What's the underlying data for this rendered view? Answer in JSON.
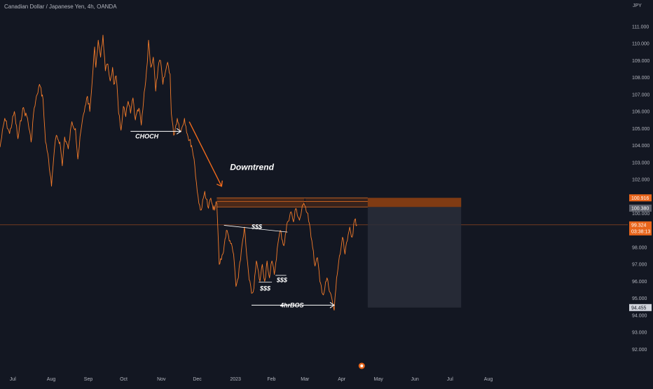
{
  "header": {
    "title": "Canadian Dollar / Japanese Yen, 4h, OANDA",
    "unit": "JPY"
  },
  "colors": {
    "background": "#131722",
    "price_line": "#f57c2a",
    "downtrend_arrow": "#f06a1c",
    "supply_zone": "#8b3d10",
    "target_box": "#2a2e39",
    "current_price_badge": "#e8651b",
    "zone_badge": "#e8651b",
    "gray_badge": "#5d606b",
    "text": "#b2b5be",
    "annotation": "#ffffff"
  },
  "chart_data": {
    "type": "line",
    "title": "Canadian Dollar / Japanese Yen, 4h, OANDA",
    "xlabel": "",
    "ylabel": "JPY",
    "ylim": [
      91.6,
      111.7
    ],
    "y_ticks": [
      "92.000",
      "93.000",
      "94.000",
      "95.000",
      "96.000",
      "97.000",
      "98.000",
      "99.000",
      "100.000",
      "101.000",
      "102.000",
      "103.000",
      "104.000",
      "105.000",
      "106.000",
      "107.000",
      "108.000",
      "109.000",
      "110.000",
      "111.000"
    ],
    "y_tick_values": [
      92,
      93,
      94,
      95,
      96,
      97,
      98,
      99,
      100,
      101,
      102,
      103,
      104,
      105,
      106,
      107,
      108,
      109,
      110,
      111
    ],
    "x_ticks": [
      "Jul",
      "Aug",
      "Sep",
      "Oct",
      "Nov",
      "Dec",
      "2023",
      "Feb",
      "Mar",
      "Apr",
      "May",
      "Jun",
      "Jul",
      "Aug"
    ],
    "x_tick_dates": [
      "2022-07-01",
      "2022-08-01",
      "2022-09-01",
      "2022-10-01",
      "2022-11-01",
      "2022-12-01",
      "2023-01-01",
      "2023-02-01",
      "2023-03-01",
      "2023-04-01",
      "2023-05-01",
      "2023-06-01",
      "2023-07-01",
      "2023-08-01"
    ],
    "series": [
      {
        "color": "#f57c2a",
        "points": [
          [
            "2022-06-20",
            103.9
          ],
          [
            "2022-06-24",
            105.6
          ],
          [
            "2022-06-28",
            104.7
          ],
          [
            "2022-07-02",
            106.0
          ],
          [
            "2022-07-05",
            104.4
          ],
          [
            "2022-07-09",
            106.2
          ],
          [
            "2022-07-13",
            105.6
          ],
          [
            "2022-07-16",
            104.2
          ],
          [
            "2022-07-18",
            105.9
          ],
          [
            "2022-07-21",
            107.0
          ],
          [
            "2022-07-23",
            107.6
          ],
          [
            "2022-07-26",
            106.7
          ],
          [
            "2022-07-28",
            104.2
          ],
          [
            "2022-07-30",
            103.5
          ],
          [
            "2022-08-02",
            101.6
          ],
          [
            "2022-08-04",
            103.4
          ],
          [
            "2022-08-06",
            104.6
          ],
          [
            "2022-08-09",
            104.2
          ],
          [
            "2022-08-11",
            102.8
          ],
          [
            "2022-08-13",
            104.5
          ],
          [
            "2022-08-16",
            103.8
          ],
          [
            "2022-08-19",
            105.4
          ],
          [
            "2022-08-22",
            105.0
          ],
          [
            "2022-08-24",
            103.2
          ],
          [
            "2022-08-27",
            105.1
          ],
          [
            "2022-08-30",
            106.3
          ],
          [
            "2022-09-01",
            106.9
          ],
          [
            "2022-09-03",
            106.0
          ],
          [
            "2022-09-05",
            107.8
          ],
          [
            "2022-09-07",
            109.8
          ],
          [
            "2022-09-08",
            108.6
          ],
          [
            "2022-09-10",
            110.2
          ],
          [
            "2022-09-12",
            109.2
          ],
          [
            "2022-09-14",
            110.5
          ],
          [
            "2022-09-16",
            108.4
          ],
          [
            "2022-09-18",
            108.8
          ],
          [
            "2022-09-20",
            107.8
          ],
          [
            "2022-09-22",
            108.6
          ],
          [
            "2022-09-23",
            107.6
          ],
          [
            "2022-09-25",
            108.1
          ],
          [
            "2022-09-27",
            105.9
          ],
          [
            "2022-09-29",
            104.9
          ],
          [
            "2022-10-01",
            106.3
          ],
          [
            "2022-10-03",
            105.7
          ],
          [
            "2022-10-05",
            106.6
          ],
          [
            "2022-10-07",
            105.9
          ],
          [
            "2022-10-09",
            106.8
          ],
          [
            "2022-10-11",
            105.5
          ],
          [
            "2022-10-14",
            106.2
          ],
          [
            "2022-10-16",
            105.2
          ],
          [
            "2022-10-19",
            107.4
          ],
          [
            "2022-10-21",
            108.9
          ],
          [
            "2022-10-22",
            110.2
          ],
          [
            "2022-10-24",
            108.6
          ],
          [
            "2022-10-26",
            109.2
          ],
          [
            "2022-10-28",
            107.2
          ],
          [
            "2022-10-30",
            108.6
          ],
          [
            "2022-11-01",
            109.0
          ],
          [
            "2022-11-03",
            107.6
          ],
          [
            "2022-11-05",
            108.3
          ],
          [
            "2022-11-07",
            108.9
          ],
          [
            "2022-11-09",
            108.2
          ],
          [
            "2022-11-10",
            105.9
          ],
          [
            "2022-11-12",
            104.6
          ],
          [
            "2022-11-15",
            105.6
          ],
          [
            "2022-11-18",
            104.8
          ],
          [
            "2022-11-21",
            105.6
          ],
          [
            "2022-11-24",
            104.5
          ],
          [
            "2022-11-27",
            104.0
          ],
          [
            "2022-11-29",
            103.2
          ],
          [
            "2022-12-01",
            101.8
          ],
          [
            "2022-12-03",
            100.6
          ],
          [
            "2022-12-05",
            100.2
          ],
          [
            "2022-12-08",
            101.3
          ],
          [
            "2022-12-11",
            100.3
          ],
          [
            "2022-12-13",
            100.9
          ],
          [
            "2022-12-15",
            100.2
          ],
          [
            "2022-12-18",
            100.6
          ],
          [
            "2022-12-20",
            97.0
          ],
          [
            "2022-12-23",
            97.6
          ],
          [
            "2022-12-26",
            99.0
          ],
          [
            "2022-12-29",
            98.4
          ],
          [
            "2023-01-01",
            97.6
          ],
          [
            "2023-01-03",
            95.7
          ],
          [
            "2023-01-05",
            96.2
          ],
          [
            "2023-01-08",
            98.1
          ],
          [
            "2023-01-10",
            99.2
          ],
          [
            "2023-01-12",
            97.5
          ],
          [
            "2023-01-14",
            96.1
          ],
          [
            "2023-01-16",
            95.3
          ],
          [
            "2023-01-18",
            95.6
          ],
          [
            "2023-01-20",
            97.2
          ],
          [
            "2023-01-23",
            96.0
          ],
          [
            "2023-01-25",
            97.0
          ],
          [
            "2023-01-27",
            96.0
          ],
          [
            "2023-01-29",
            97.2
          ],
          [
            "2023-01-31",
            96.2
          ],
          [
            "2023-02-02",
            97.2
          ],
          [
            "2023-02-04",
            96.4
          ],
          [
            "2023-02-07",
            98.2
          ],
          [
            "2023-02-09",
            99.0
          ],
          [
            "2023-02-12",
            98.1
          ],
          [
            "2023-02-15",
            99.5
          ],
          [
            "2023-02-18",
            100.1
          ],
          [
            "2023-02-20",
            99.5
          ],
          [
            "2023-02-22",
            100.3
          ],
          [
            "2023-02-25",
            99.6
          ],
          [
            "2023-02-28",
            100.5
          ],
          [
            "2023-03-02",
            100.4
          ],
          [
            "2023-03-04",
            100.0
          ],
          [
            "2023-03-06",
            99.1
          ],
          [
            "2023-03-08",
            98.0
          ],
          [
            "2023-03-10",
            96.9
          ],
          [
            "2023-03-12",
            97.4
          ],
          [
            "2023-03-14",
            96.0
          ],
          [
            "2023-03-17",
            95.2
          ],
          [
            "2023-03-20",
            96.2
          ],
          [
            "2023-03-22",
            95.4
          ],
          [
            "2023-03-24",
            95.0
          ],
          [
            "2023-03-26",
            94.3
          ],
          [
            "2023-03-28",
            96.2
          ],
          [
            "2023-03-31",
            97.6
          ],
          [
            "2023-04-02",
            98.6
          ],
          [
            "2023-04-04",
            97.6
          ],
          [
            "2023-04-06",
            98.4
          ],
          [
            "2023-04-08",
            99.2
          ],
          [
            "2023-04-10",
            98.6
          ],
          [
            "2023-04-12",
            99.6
          ],
          [
            "2023-04-14",
            99.3
          ]
        ]
      }
    ],
    "annotations": {
      "choch": "CHOCH",
      "downtrend": "Downtrend",
      "liquidity_top": "$$$",
      "liquidity_mid": "$$$",
      "liquidity_low": "$$$",
      "bos": "4hrBOS"
    },
    "price_badges": {
      "zone_top": "100.916",
      "zone_bottom": "100.380",
      "current_price": "99.324",
      "countdown": "03:38:13",
      "target": "94.455"
    },
    "levels": {
      "zone_top": 100.916,
      "zone_bottom": 100.38,
      "current_price": 99.324,
      "target": 94.455,
      "choch": 105.0,
      "bos": 94.6
    },
    "target_box": {
      "start": "2023-04-23",
      "end": "2023-07-10",
      "top": 100.916,
      "bottom": 94.455
    },
    "grid": false,
    "scale": "linear"
  }
}
